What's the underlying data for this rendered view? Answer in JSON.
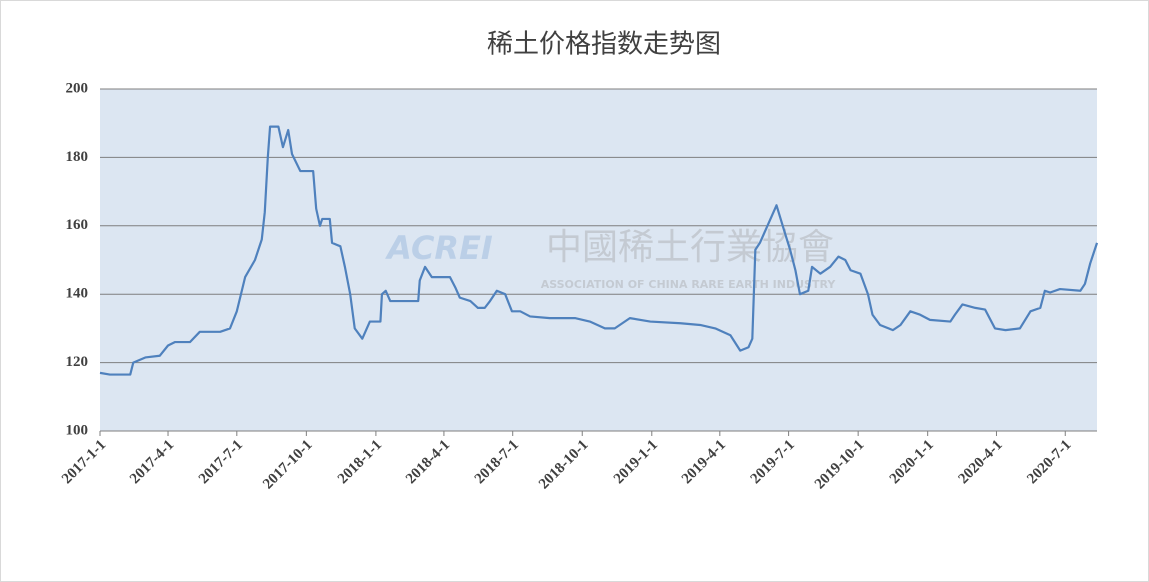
{
  "chart_data": {
    "type": "line",
    "title": "稀土价格指数走势图",
    "watermark": {
      "logo": "ACREI",
      "name": "中國稀土行業協會",
      "subtitle": "ASSOCIATION OF CHINA RARE EARTH INDUSTRY"
    },
    "x": [
      "2017-1-1",
      "2017-1-14",
      "2017-2-10",
      "2017-2-14",
      "2017-3-2",
      "2017-3-21",
      "2017-4-1",
      "2017-4-10",
      "2017-4-30",
      "2017-5-13",
      "2017-6-9",
      "2017-6-22",
      "2017-7-1",
      "2017-7-12",
      "2017-7-25",
      "2017-8-3",
      "2017-8-7",
      "2017-8-11",
      "2017-8-14",
      "2017-8-25",
      "2017-8-31",
      "2017-9-7",
      "2017-9-12",
      "2017-9-23",
      "2017-10-10",
      "2017-10-14",
      "2017-10-19",
      "2017-10-22",
      "2017-11-1",
      "2017-11-4",
      "2017-11-15",
      "2017-11-21",
      "2017-11-28",
      "2017-12-4",
      "2017-12-14",
      "2017-12-24",
      "2018-1-7",
      "2018-1-9",
      "2018-1-14",
      "2018-1-20",
      "2018-2-26",
      "2018-2-28",
      "2018-3-7",
      "2018-3-16",
      "2018-4-9",
      "2018-4-16",
      "2018-4-22",
      "2018-5-6",
      "2018-5-16",
      "2018-5-25",
      "2018-6-1",
      "2018-6-10",
      "2018-6-21",
      "2018-6-30",
      "2018-7-11",
      "2018-7-24",
      "2018-8-19",
      "2018-9-22",
      "2018-10-11",
      "2018-10-31",
      "2018-11-13",
      "2018-12-3",
      "2018-12-30",
      "2019-2-8",
      "2019-3-6",
      "2019-3-26",
      "2019-4-15",
      "2019-4-28",
      "2019-5-9",
      "2019-5-14",
      "2019-5-18",
      "2019-5-24",
      "2019-6-3",
      "2019-6-15",
      "2019-6-26",
      "2019-7-3",
      "2019-7-10",
      "2019-7-16",
      "2019-7-27",
      "2019-8-1",
      "2019-8-12",
      "2019-8-25",
      "2019-9-5",
      "2019-9-14",
      "2019-9-21",
      "2019-10-4",
      "2019-10-14",
      "2019-10-20",
      "2019-10-30",
      "2019-11-16",
      "2019-11-26",
      "2019-12-9",
      "2019-12-22",
      "2020-1-4",
      "2020-1-31",
      "2020-2-6",
      "2020-2-16",
      "2020-3-4",
      "2020-3-17",
      "2020-3-30",
      "2020-4-13",
      "2020-5-2",
      "2020-5-16",
      "2020-5-29",
      "2020-6-4",
      "2020-6-11",
      "2020-6-24",
      "2020-7-21",
      "2020-7-27",
      "2020-8-3",
      "2020-8-12"
    ],
    "values": [
      117,
      116.5,
      116.5,
      120,
      121.5,
      122,
      125,
      126,
      126,
      129,
      129,
      130,
      135,
      145,
      150,
      156,
      164,
      180,
      189,
      189,
      183,
      188,
      181,
      176,
      176,
      165,
      160,
      162,
      162,
      155,
      154,
      148,
      140,
      130,
      127,
      132,
      132,
      140,
      141,
      138,
      138,
      144,
      148,
      145,
      145,
      142,
      139,
      138,
      136,
      136,
      138,
      141,
      140,
      135,
      135,
      133.5,
      133,
      133,
      132,
      130,
      130,
      133,
      132,
      131.5,
      131,
      130,
      128,
      123.5,
      124.5,
      127,
      153,
      155,
      160,
      166,
      158,
      153,
      147,
      140,
      141,
      148,
      146,
      148,
      151,
      150,
      147,
      146,
      140,
      134,
      131,
      129.5,
      131,
      135,
      134,
      132.5,
      132,
      134,
      137,
      136,
      135.5,
      130,
      129.5,
      130,
      135,
      136,
      141,
      140.5,
      141.5,
      141,
      143,
      149,
      155
    ],
    "color": "#4f81bd",
    "xlim": [
      "2017-1-1",
      "2020-8-12"
    ],
    "xticks": [
      "2017-1-1",
      "2017-4-1",
      "2017-7-1",
      "2017-10-1",
      "2018-1-1",
      "2018-4-1",
      "2018-7-1",
      "2018-10-1",
      "2019-1-1",
      "2019-4-1",
      "2019-7-1",
      "2019-10-1",
      "2020-1-1",
      "2020-4-1",
      "2020-7-1"
    ],
    "ylim": [
      100,
      200
    ],
    "yticks": [
      100,
      120,
      140,
      160,
      180,
      200
    ],
    "grid": true
  }
}
